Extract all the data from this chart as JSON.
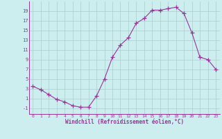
{
  "x": [
    0,
    1,
    2,
    3,
    4,
    5,
    6,
    7,
    8,
    9,
    10,
    11,
    12,
    13,
    14,
    15,
    16,
    17,
    18,
    19,
    20,
    21,
    22,
    23
  ],
  "y": [
    3.5,
    2.8,
    1.8,
    0.8,
    0.3,
    -0.5,
    -0.8,
    -0.8,
    1.5,
    5.0,
    9.5,
    12.0,
    13.5,
    16.5,
    17.5,
    19.2,
    19.2,
    19.5,
    19.8,
    18.5,
    14.5,
    9.5,
    9.0,
    7.0
  ],
  "line_color": "#993399",
  "marker": "+",
  "marker_size": 4,
  "bg_color": "#cceeee",
  "grid_color": "#aacccc",
  "xlabel": "Windchill (Refroidissement éolien,°C)",
  "xlabel_color": "#993399",
  "tick_color": "#993399",
  "ylabel_ticks": [
    -1,
    1,
    3,
    5,
    7,
    9,
    11,
    13,
    15,
    17,
    19
  ],
  "xtick_labels": [
    "0",
    "1",
    "2",
    "3",
    "4",
    "5",
    "6",
    "7",
    "8",
    "9",
    "10",
    "11",
    "12",
    "13",
    "14",
    "15",
    "16",
    "17",
    "18",
    "19",
    "20",
    "21",
    "22",
    "23"
  ],
  "ylim": [
    -2.2,
    21
  ],
  "xlim": [
    -0.5,
    23.5
  ]
}
